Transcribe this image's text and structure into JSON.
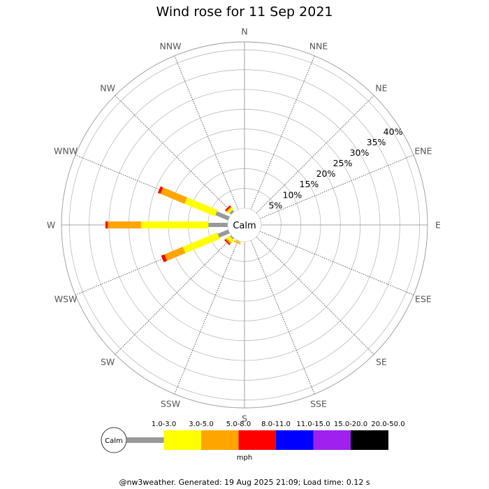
{
  "title": "Wind rose for 11 Sep 2021",
  "footer": "@nw3weather. Generated: 19 Aug 2025 21:09; Load time: 0.12 s",
  "chart_data": {
    "type": "wind-rose",
    "unit_label": "mph",
    "calm_label": "Calm",
    "directions": [
      "N",
      "NNE",
      "NE",
      "ENE",
      "E",
      "ESE",
      "SE",
      "SSE",
      "S",
      "SSW",
      "SW",
      "WSW",
      "W",
      "WNW",
      "NW",
      "NNW"
    ],
    "ring_labels": [
      "5%",
      "10%",
      "15%",
      "20%",
      "25%",
      "30%",
      "35%",
      "40%"
    ],
    "ring_values": [
      5,
      10,
      15,
      20,
      25,
      30,
      35,
      40
    ],
    "max_percent": 42,
    "speed_bins": [
      {
        "label": "1.0-3.0",
        "color": "#999999"
      },
      {
        "label": "3.0-5.0",
        "color": "#ffff00"
      },
      {
        "label": "5.0-8.0",
        "color": "#ffa500"
      },
      {
        "label": "8.0-11.0",
        "color": "#ff0000"
      },
      {
        "label": "11.0-15.0",
        "color": "#0000ff"
      },
      {
        "label": "15.0-20.0",
        "color": "#a020f0"
      },
      {
        "label": "20.0-50.0",
        "color": "#000000"
      }
    ],
    "frequencies": {
      "NW": [
        0.6,
        0.6,
        0.3,
        0.4,
        0,
        0,
        0
      ],
      "WNW": [
        3.5,
        8.3,
        6.6,
        0.7,
        0,
        0,
        0
      ],
      "W": [
        4.9,
        17.0,
        8.4,
        0.6,
        0,
        0,
        0
      ],
      "WSW": [
        2.9,
        9.4,
        5.0,
        0.9,
        0,
        0,
        0
      ],
      "SW": [
        0.4,
        0.9,
        0.4,
        0.4,
        0,
        0,
        0
      ],
      "SSW": [
        0.2,
        0.2,
        0.3,
        0,
        0,
        0,
        0
      ]
    }
  }
}
